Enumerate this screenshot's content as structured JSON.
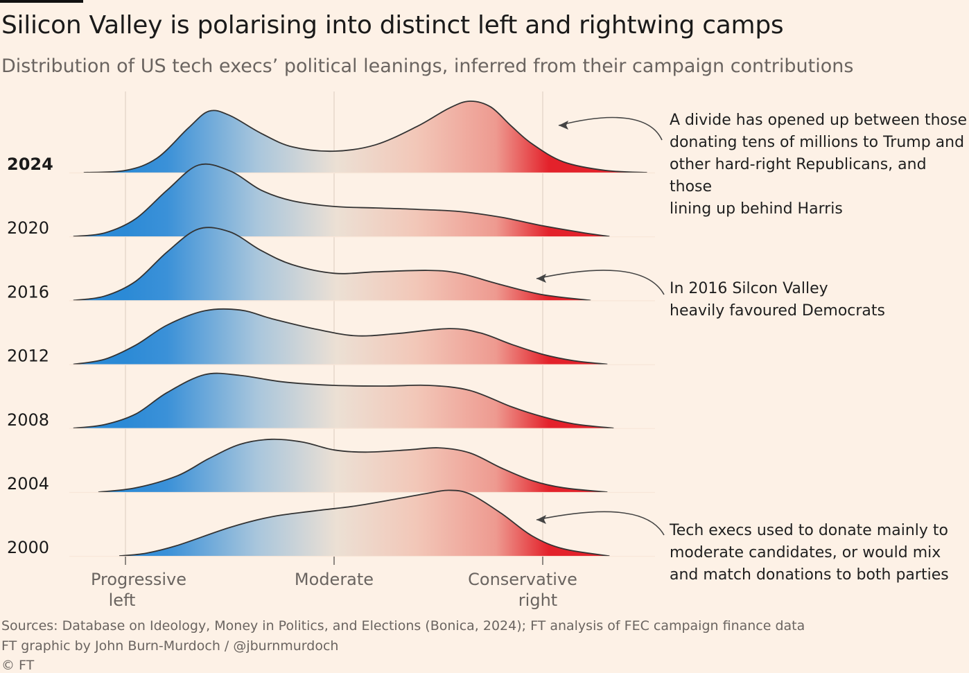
{
  "header": {
    "title": "Silicon Valley is polarising into distinct left and rightwing camps",
    "subtitle": "Distribution of US tech execs’ political leanings, inferred from their campaign contributions"
  },
  "annotations": [
    "A divide has opened up between those\ndonating tens of millions to Trump and\nother hard-right Republicans, and those\nlining up behind Harris",
    "In 2016 Silcon Valley\nheavily favoured Democrats",
    "Tech execs used to donate mainly to\nmoderate candidates, or would mix\nand match donations to both parties"
  ],
  "footer": {
    "source": "Sources: Database on Ideology, Money in Politics, and Elections (Bonica, 2024); FT analysis of FEC campaign finance data",
    "credit": "FT graphic by John Burn-Murdoch / @jburnmurdoch",
    "copyright": "© FT"
  },
  "colors": {
    "left": "#2b8ad6",
    "center": "#ece0d4",
    "right": "#e3222b",
    "background": "#fdf1e6",
    "line": "#333333"
  },
  "chart_data": {
    "type": "area",
    "subtype": "ridgeline",
    "x_axis": {
      "range": [
        -1.0,
        1.0
      ],
      "ticks": [
        {
          "value": -1.0,
          "label": "Progressive\nleft"
        },
        {
          "value": 0.0,
          "label": "Moderate"
        },
        {
          "value": 1.0,
          "label": "Conservative\nright"
        }
      ]
    },
    "series": [
      {
        "name": "2024",
        "bold": true,
        "points": [
          [
            -1.2,
            0.0
          ],
          [
            -1.0,
            0.03
          ],
          [
            -0.85,
            0.2
          ],
          [
            -0.7,
            0.62
          ],
          [
            -0.6,
            0.86
          ],
          [
            -0.5,
            0.8
          ],
          [
            -0.35,
            0.55
          ],
          [
            -0.2,
            0.36
          ],
          [
            0.0,
            0.3
          ],
          [
            0.2,
            0.39
          ],
          [
            0.4,
            0.65
          ],
          [
            0.55,
            0.9
          ],
          [
            0.65,
            1.0
          ],
          [
            0.75,
            0.92
          ],
          [
            0.85,
            0.65
          ],
          [
            0.95,
            0.4
          ],
          [
            1.1,
            0.15
          ],
          [
            1.3,
            0.03
          ],
          [
            1.5,
            0.0
          ]
        ]
      },
      {
        "name": "2020",
        "points": [
          [
            -1.25,
            0.0
          ],
          [
            -1.1,
            0.05
          ],
          [
            -0.95,
            0.25
          ],
          [
            -0.8,
            0.65
          ],
          [
            -0.65,
            1.0
          ],
          [
            -0.5,
            0.92
          ],
          [
            -0.35,
            0.65
          ],
          [
            -0.2,
            0.5
          ],
          [
            0.0,
            0.42
          ],
          [
            0.2,
            0.4
          ],
          [
            0.4,
            0.38
          ],
          [
            0.6,
            0.35
          ],
          [
            0.8,
            0.27
          ],
          [
            1.0,
            0.15
          ],
          [
            1.2,
            0.05
          ],
          [
            1.32,
            0.0
          ]
        ]
      },
      {
        "name": "2016",
        "points": [
          [
            -1.25,
            0.0
          ],
          [
            -1.1,
            0.06
          ],
          [
            -0.95,
            0.27
          ],
          [
            -0.8,
            0.68
          ],
          [
            -0.65,
            1.0
          ],
          [
            -0.5,
            0.96
          ],
          [
            -0.35,
            0.7
          ],
          [
            -0.2,
            0.5
          ],
          [
            0.0,
            0.38
          ],
          [
            0.2,
            0.4
          ],
          [
            0.45,
            0.42
          ],
          [
            0.6,
            0.38
          ],
          [
            0.8,
            0.22
          ],
          [
            1.0,
            0.08
          ],
          [
            1.23,
            0.0
          ]
        ]
      },
      {
        "name": "2012",
        "points": [
          [
            -1.25,
            0.0
          ],
          [
            -1.1,
            0.07
          ],
          [
            -0.95,
            0.27
          ],
          [
            -0.8,
            0.55
          ],
          [
            -0.62,
            0.75
          ],
          [
            -0.45,
            0.76
          ],
          [
            -0.3,
            0.64
          ],
          [
            -0.1,
            0.5
          ],
          [
            0.1,
            0.4
          ],
          [
            0.3,
            0.43
          ],
          [
            0.55,
            0.5
          ],
          [
            0.7,
            0.44
          ],
          [
            0.85,
            0.28
          ],
          [
            1.0,
            0.14
          ],
          [
            1.15,
            0.05
          ],
          [
            1.31,
            0.0
          ]
        ]
      },
      {
        "name": "2008",
        "points": [
          [
            -1.25,
            0.0
          ],
          [
            -1.1,
            0.05
          ],
          [
            -0.95,
            0.2
          ],
          [
            -0.8,
            0.5
          ],
          [
            -0.62,
            0.75
          ],
          [
            -0.45,
            0.74
          ],
          [
            -0.25,
            0.65
          ],
          [
            0.0,
            0.6
          ],
          [
            0.25,
            0.59
          ],
          [
            0.45,
            0.6
          ],
          [
            0.65,
            0.53
          ],
          [
            0.85,
            0.3
          ],
          [
            1.0,
            0.16
          ],
          [
            1.15,
            0.06
          ],
          [
            1.34,
            0.0
          ]
        ]
      },
      {
        "name": "2004",
        "points": [
          [
            -1.13,
            0.0
          ],
          [
            -0.95,
            0.06
          ],
          [
            -0.75,
            0.23
          ],
          [
            -0.6,
            0.47
          ],
          [
            -0.45,
            0.67
          ],
          [
            -0.3,
            0.74
          ],
          [
            -0.15,
            0.7
          ],
          [
            0.0,
            0.59
          ],
          [
            0.15,
            0.56
          ],
          [
            0.35,
            0.59
          ],
          [
            0.5,
            0.62
          ],
          [
            0.65,
            0.55
          ],
          [
            0.8,
            0.34
          ],
          [
            0.95,
            0.16
          ],
          [
            1.1,
            0.06
          ],
          [
            1.31,
            0.0
          ]
        ]
      },
      {
        "name": "2000",
        "points": [
          [
            -1.03,
            0.0
          ],
          [
            -0.9,
            0.04
          ],
          [
            -0.75,
            0.15
          ],
          [
            -0.5,
            0.4
          ],
          [
            -0.3,
            0.55
          ],
          [
            -0.1,
            0.63
          ],
          [
            0.1,
            0.7
          ],
          [
            0.3,
            0.8
          ],
          [
            0.45,
            0.88
          ],
          [
            0.55,
            0.92
          ],
          [
            0.65,
            0.87
          ],
          [
            0.8,
            0.6
          ],
          [
            0.95,
            0.28
          ],
          [
            1.1,
            0.1
          ],
          [
            1.32,
            0.0
          ]
        ]
      }
    ]
  }
}
